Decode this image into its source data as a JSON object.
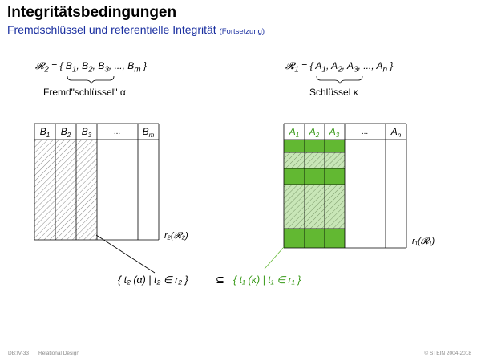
{
  "header": {
    "title": "Integritätsbedingungen",
    "subtitle": "Fremdschlüssel und referentielle Integrität",
    "subtitle_note": "(Fortsetzung)"
  },
  "left": {
    "schema_prefix": "𝓡",
    "schema_index": "2",
    "schema_open": " = { ",
    "attrs": [
      {
        "name": "B",
        "index": "1"
      },
      {
        "name": "B",
        "index": "2"
      },
      {
        "name": "B",
        "index": "3"
      },
      {
        "name": "...",
        "index": ""
      },
      {
        "name": "B",
        "index": "m"
      }
    ],
    "schema_close": " }",
    "brace_label": "Fremd\"schlüssel\" α",
    "relation_label": "r₂(𝓡₂)"
  },
  "right": {
    "schema_prefix": "𝓡",
    "schema_index": "1",
    "schema_open": " = { ",
    "attrs": [
      {
        "name": "A",
        "index": "1"
      },
      {
        "name": "A",
        "index": "2"
      },
      {
        "name": "A",
        "index": "3"
      },
      {
        "name": "...",
        "index": ""
      },
      {
        "name": "A",
        "index": "n"
      }
    ],
    "schema_close": " }",
    "brace_label": "Schlüssel κ",
    "relation_label": "r₁(𝓡₁)"
  },
  "bottom": {
    "left_expr": "{ t₂ (α) | t₂ ∈ r₂ }",
    "subset": "⊆",
    "right_expr": "{ t₁ (κ) | t₁ ∈ r₁ }"
  },
  "footer": {
    "code": "DB:IV-33",
    "topic": "Relational Design",
    "copyright": "© STEIN 2004-2018"
  },
  "colors": {
    "green": "#62b832",
    "green_text": "#3a9a1a",
    "title_blue": "#1a2fa0",
    "hatch": "#888888"
  }
}
